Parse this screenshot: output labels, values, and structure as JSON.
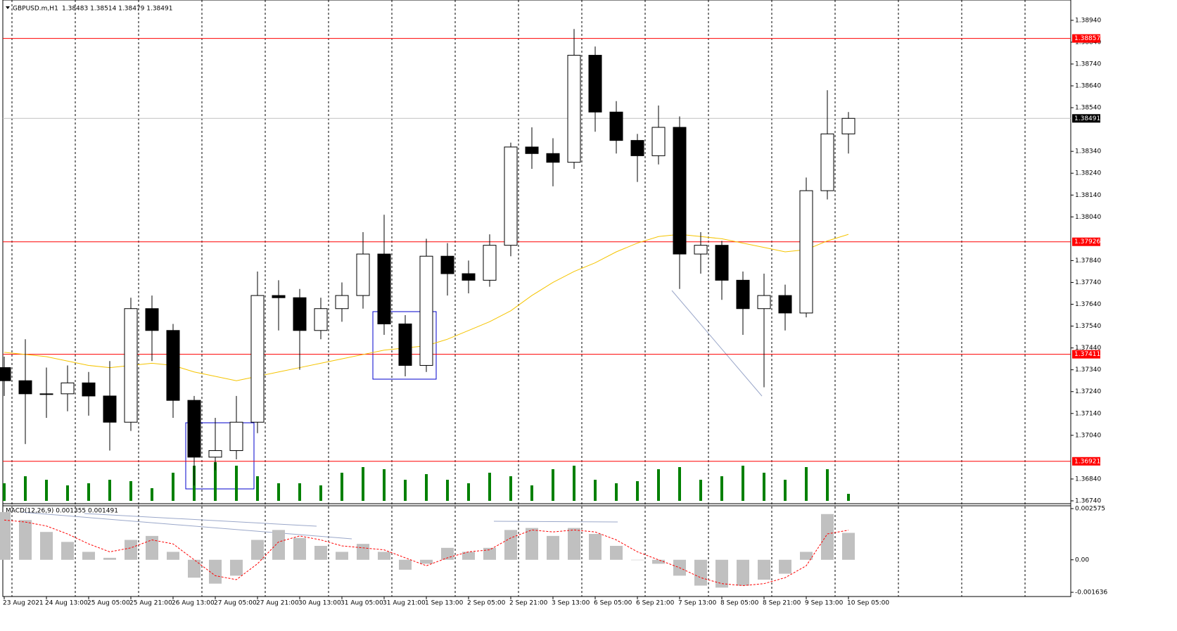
{
  "chart_data": {
    "type": "candlestick",
    "title": "GBPUSD.m,H1",
    "quote": "1.38483 1.38514 1.38479 1.38491",
    "categories": [
      "23 Aug 2021",
      null,
      "24 Aug 13:00",
      null,
      "25 Aug 05:00",
      null,
      "25 Aug 21:00",
      null,
      "26 Aug 13:00",
      null,
      "27 Aug 05:00",
      null,
      "27 Aug 21:00",
      null,
      "30 Aug 13:00",
      null,
      "31 Aug 05:00",
      null,
      "31 Aug 21:00",
      null,
      "1 Sep 13:00",
      null,
      "2 Sep 05:00",
      null,
      "2 Sep 21:00",
      null,
      "3 Sep 13:00",
      null,
      "6 Sep 05:00",
      null,
      "6 Sep 21:00",
      null,
      "7 Sep 13:00",
      null,
      "8 Sep 05:00",
      null,
      "8 Sep 21:00",
      null,
      "9 Sep 13:00",
      null,
      "10 Sep 05:00"
    ],
    "open": [
      1.3735,
      1.3729,
      1.3723,
      1.3723,
      1.3728,
      1.3722,
      1.371,
      1.3762,
      1.3752,
      1.372,
      1.3694,
      1.3697,
      1.371,
      1.3768,
      1.3767,
      1.3752,
      1.3762,
      1.3768,
      1.3787,
      1.3755,
      1.3736,
      1.3786,
      1.3778,
      1.3775,
      1.3791,
      1.3836,
      1.3833,
      1.3829,
      1.3878,
      1.3852,
      1.3839,
      1.3832,
      1.3845,
      1.3787,
      1.3791,
      1.3775,
      1.3762,
      1.3768,
      1.376,
      1.3816,
      1.3842
    ],
    "high": [
      1.374,
      1.3748,
      1.3735,
      1.3736,
      1.3733,
      1.3738,
      1.3767,
      1.3768,
      1.3755,
      1.3722,
      1.3712,
      1.3722,
      1.3779,
      1.3775,
      1.3771,
      1.3767,
      1.3774,
      1.3797,
      1.3805,
      1.3759,
      1.3794,
      1.3792,
      1.3784,
      1.3796,
      1.3838,
      1.3845,
      1.384,
      1.389,
      1.3882,
      1.3857,
      1.3842,
      1.3855,
      1.385,
      1.3797,
      1.3793,
      1.3779,
      1.3778,
      1.3773,
      1.3822,
      1.3862,
      1.3852
    ],
    "low": [
      1.3722,
      1.37,
      1.3712,
      1.3715,
      1.3713,
      1.3697,
      1.3706,
      1.3738,
      1.3712,
      1.3681,
      1.3688,
      1.3693,
      1.3705,
      1.3752,
      1.3734,
      1.3748,
      1.3756,
      1.3762,
      1.375,
      1.3731,
      1.3733,
      1.3768,
      1.3769,
      1.3772,
      1.3786,
      1.3826,
      1.3818,
      1.3826,
      1.3843,
      1.3833,
      1.382,
      1.3828,
      1.3771,
      1.3778,
      1.3766,
      1.375,
      1.3726,
      1.3752,
      1.3758,
      1.3812,
      1.3833
    ],
    "close": [
      1.3729,
      1.3723,
      1.3723,
      1.3728,
      1.3722,
      1.371,
      1.3762,
      1.3752,
      1.372,
      1.3694,
      1.3697,
      1.371,
      1.3768,
      1.3767,
      1.3752,
      1.3762,
      1.3768,
      1.3787,
      1.3755,
      1.3736,
      1.3786,
      1.3778,
      1.3775,
      1.3791,
      1.3836,
      1.3833,
      1.3829,
      1.3878,
      1.3852,
      1.3839,
      1.3832,
      1.3845,
      1.3787,
      1.3791,
      1.3775,
      1.3762,
      1.3768,
      1.376,
      1.3816,
      1.3842,
      1.38491
    ],
    "ma": {
      "color": "#f5c400",
      "values": [
        1.3742,
        1.3741,
        1.374,
        1.3738,
        1.3736,
        1.3735,
        1.3736,
        1.3737,
        1.3736,
        1.3733,
        1.3731,
        1.3729,
        1.3731,
        1.3733,
        1.3735,
        1.3737,
        1.3739,
        1.3741,
        1.3743,
        1.3744,
        1.3745,
        1.3748,
        1.3752,
        1.3756,
        1.3761,
        1.3768,
        1.3774,
        1.3779,
        1.3783,
        1.3788,
        1.3792,
        1.3795,
        1.3796,
        1.3795,
        1.3794,
        1.3792,
        1.379,
        1.3788,
        1.3789,
        1.3793,
        1.3796
      ]
    },
    "volume": {
      "color": "#008000",
      "values": [
        25,
        35,
        30,
        22,
        25,
        30,
        28,
        18,
        40,
        50,
        55,
        50,
        35,
        25,
        25,
        22,
        40,
        48,
        45,
        30,
        38,
        30,
        25,
        40,
        35,
        22,
        45,
        50,
        30,
        25,
        28,
        45,
        48,
        30,
        35,
        50,
        40,
        30,
        48,
        45,
        10
      ]
    },
    "ylim": [
      1.36727,
      1.39033
    ],
    "yticks": [
      {
        "value": 1.3894,
        "label": "1.38940"
      },
      {
        "value": 1.3884,
        "label": "1.38840"
      },
      {
        "value": 1.3874,
        "label": "1.38740"
      },
      {
        "value": 1.3864,
        "label": "1.38640"
      },
      {
        "value": 1.3854,
        "label": "1.38540"
      },
      {
        "value": 1.3834,
        "label": "1.38340"
      },
      {
        "value": 1.3824,
        "label": "1.38240"
      },
      {
        "value": 1.3814,
        "label": "1.38140"
      },
      {
        "value": 1.3804,
        "label": "1.38040"
      },
      {
        "value": 1.3784,
        "label": "1.37840"
      },
      {
        "value": 1.3774,
        "label": "1.37740"
      },
      {
        "value": 1.3764,
        "label": "1.37640"
      },
      {
        "value": 1.3754,
        "label": "1.37540"
      },
      {
        "value": 1.3744,
        "label": "1.37440"
      },
      {
        "value": 1.3734,
        "label": "1.37340"
      },
      {
        "value": 1.3724,
        "label": "1.37240"
      },
      {
        "value": 1.3714,
        "label": "1.37140"
      },
      {
        "value": 1.3704,
        "label": "1.37040"
      },
      {
        "value": 1.3684,
        "label": "1.36840"
      },
      {
        "value": 1.3674,
        "label": "1.36740"
      }
    ],
    "levels": [
      {
        "value": 1.38857,
        "label": "1.38857"
      },
      {
        "value": 1.37926,
        "label": "1.37926"
      },
      {
        "value": 1.37411,
        "label": "1.37411"
      },
      {
        "value": 1.36921,
        "label": "1.36921"
      }
    ],
    "level_color": "#ff0000",
    "bid": {
      "value": 1.38491,
      "label": "1.38491"
    },
    "macd": {
      "title": "MACD(12,26,9) 0.001355 0.001491",
      "histogram": {
        "color": "#c0c0c0",
        "values": [
          0.0024,
          0.002,
          0.0014,
          0.0009,
          0.0004,
          0.0001,
          0.001,
          0.0012,
          0.0004,
          -0.0009,
          -0.0012,
          -0.0008,
          0.001,
          0.0015,
          0.0011,
          0.0007,
          0.0004,
          0.0008,
          0.0004,
          -0.0005,
          -0.0002,
          0.0006,
          0.0004,
          0.0006,
          0.0015,
          0.0016,
          0.0012,
          0.0016,
          0.0013,
          0.0007,
          0.0,
          -0.0002,
          -0.0008,
          -0.0013,
          -0.0014,
          -0.0013,
          -0.001,
          -0.0007,
          0.0004,
          0.0023,
          0.001355
        ]
      },
      "signal": {
        "color": "#ff0000",
        "values": [
          0.002,
          0.0019,
          0.0017,
          0.0013,
          0.0008,
          0.0004,
          0.0006,
          0.001,
          0.0008,
          0.0,
          -0.0008,
          -0.001,
          -0.0002,
          0.0009,
          0.0012,
          0.001,
          0.0007,
          0.0006,
          0.0005,
          0.0001,
          -0.0003,
          0.0001,
          0.0004,
          0.0005,
          0.0011,
          0.0015,
          0.0014,
          0.0015,
          0.0014,
          0.001,
          0.0004,
          0.0,
          -0.0004,
          -0.0009,
          -0.0012,
          -0.0013,
          -0.0012,
          -0.0009,
          -0.0003,
          0.0013,
          0.001491
        ]
      },
      "ylim": [
        -0.001636,
        0.002575
      ],
      "yticks": [
        {
          "value": 0.002575,
          "label": "0.002575"
        },
        {
          "value": 0,
          "label": "0.00"
        },
        {
          "value": -0.001636,
          "label": "-0.001636"
        }
      ]
    }
  }
}
